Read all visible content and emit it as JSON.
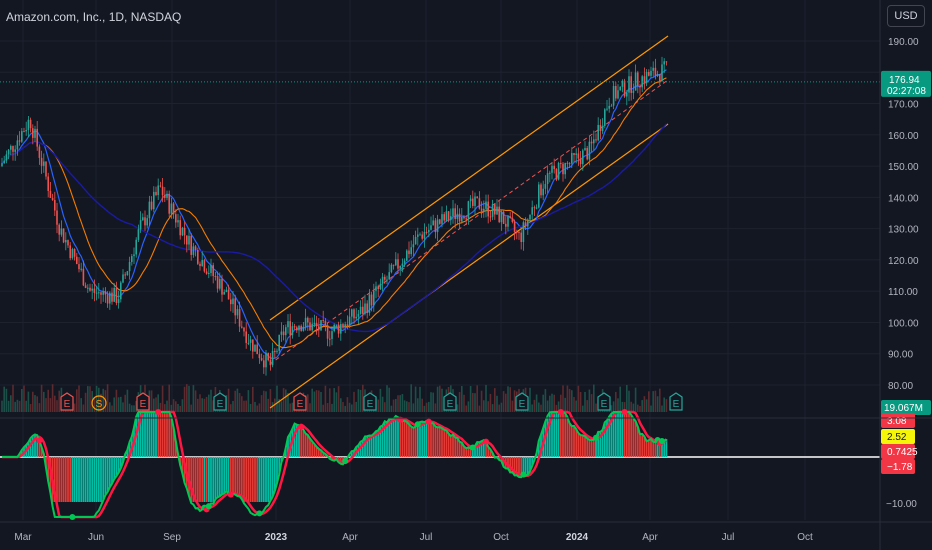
{
  "header": {
    "symbol_title": "Amazon.com, Inc., 1D, NASDAQ",
    "currency_button": "USD"
  },
  "price_axis": {
    "ticks": [
      "190.00",
      "180.00",
      "170.00",
      "160.00",
      "150.00",
      "140.00",
      "130.00",
      "120.00",
      "110.00",
      "100.00",
      "90.00",
      "80.00"
    ],
    "last_price": "176.94",
    "countdown": "02:27:08",
    "volume_label": "19.067M"
  },
  "oscillator_axis": {
    "ticks": [
      "−10.00"
    ],
    "tags": [
      "3.08",
      "2.52",
      "0.7425",
      "−1.78"
    ]
  },
  "time_axis": {
    "ticks": [
      {
        "label": "Mar",
        "bold": false
      },
      {
        "label": "Jun",
        "bold": false
      },
      {
        "label": "Sep",
        "bold": false
      },
      {
        "label": "2023",
        "bold": true
      },
      {
        "label": "Apr",
        "bold": false
      },
      {
        "label": "Jul",
        "bold": false
      },
      {
        "label": "Oct",
        "bold": false
      },
      {
        "label": "2024",
        "bold": true
      },
      {
        "label": "Apr",
        "bold": false
      },
      {
        "label": "Jul",
        "bold": false
      },
      {
        "label": "Oct",
        "bold": false
      }
    ]
  },
  "events": [
    {
      "type": "earnings",
      "label": "E"
    },
    {
      "type": "split",
      "label": "S"
    },
    {
      "type": "earnings",
      "label": "E"
    },
    {
      "type": "dividend-like",
      "label": "E"
    },
    {
      "type": "earnings",
      "label": "E"
    },
    {
      "type": "earnings",
      "label": "E"
    },
    {
      "type": "earnings",
      "label": "E"
    },
    {
      "type": "earnings",
      "label": "E"
    },
    {
      "type": "earnings",
      "label": "E"
    },
    {
      "type": "earnings",
      "label": "E"
    }
  ],
  "colors": {
    "background": "#131722",
    "up": "#26a69a",
    "down": "#ef5350",
    "ma_fast": "#2962ff",
    "ma_medium": "#f57c00",
    "ma_slow": "#1a1aa6",
    "channel": "#ff9800",
    "osc_fast": "#00c853",
    "osc_slow": "#ff1744",
    "last_price_tag": "#089981"
  },
  "chart_data": {
    "type": "line",
    "title": "Amazon.com, Inc., 1D, NASDAQ",
    "xlabel": "",
    "ylabel": "",
    "ylim": [
      75,
      193
    ],
    "x": [
      "2022-02",
      "2022-03",
      "2022-04",
      "2022-05",
      "2022-06",
      "2022-07",
      "2022-08",
      "2022-09",
      "2022-10",
      "2022-11",
      "2022-12",
      "2023-01",
      "2023-02",
      "2023-03",
      "2023-04",
      "2023-05",
      "2023-06",
      "2023-07",
      "2023-08",
      "2023-09",
      "2023-10",
      "2023-11",
      "2023-12",
      "2024-01",
      "2024-02",
      "2024-03",
      "2024-04"
    ],
    "series": [
      {
        "values": [
          150,
          165,
          130,
          110,
          108,
          130,
          143,
          125,
          110,
          94,
          86,
          98,
          100,
          97,
          103,
          115,
          128,
          134,
          138,
          134,
          127,
          146,
          151,
          155,
          172,
          178,
          181
        ]
      }
    ],
    "annotations": [
      "Last price 176.94"
    ],
    "grid": true
  }
}
